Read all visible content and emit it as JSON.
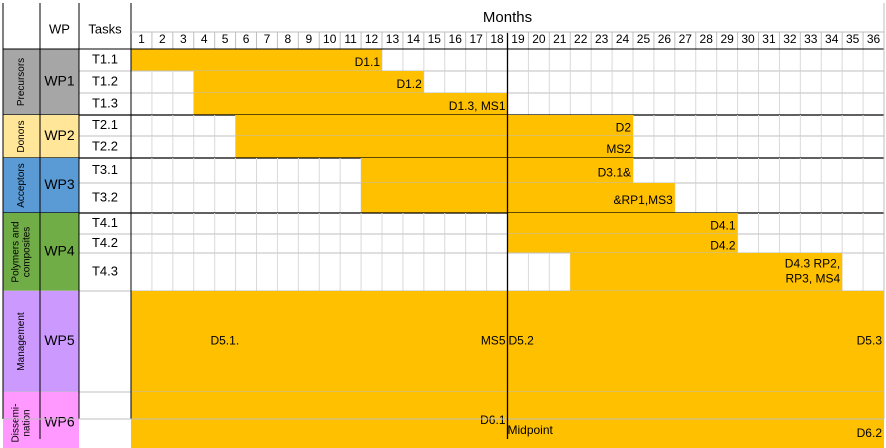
{
  "header": {
    "wp": "WP",
    "tasks": "Tasks",
    "months": "Months",
    "month_numbers": [
      "1",
      "2",
      "3",
      "4",
      "5",
      "6",
      "7",
      "8",
      "9",
      "10",
      "11",
      "12",
      "13",
      "14",
      "15",
      "16",
      "17",
      "18",
      "19",
      "20",
      "21",
      "22",
      "23",
      "24",
      "25",
      "26",
      "27",
      "28",
      "29",
      "30",
      "31",
      "32",
      "33",
      "34",
      "35",
      "36"
    ]
  },
  "footer": {
    "midpoint": "Midpoint"
  },
  "colors": {
    "bar": "#FFC000",
    "grid": "#BFBFBF",
    "line": "#000000"
  },
  "groups": [
    {
      "category_lines": [
        "Precursors"
      ],
      "category_color": "#A6A6A6",
      "wp": "WP1",
      "wp_color": "#A6A6A6",
      "tasks": [
        {
          "id": "T1.1",
          "start_month": 1,
          "end_month": 12,
          "labels": [
            "D1.1"
          ]
        },
        {
          "id": "T1.2",
          "start_month": 4,
          "end_month": 14,
          "labels": [
            "D1.2"
          ]
        },
        {
          "id": "T1.3",
          "start_month": 4,
          "end_month": 18,
          "labels": [
            "D1.3, MS1"
          ]
        }
      ]
    },
    {
      "category_lines": [
        "Donors"
      ],
      "category_color": "#FFE699",
      "wp": "WP2",
      "wp_color": "#FFE699",
      "tasks": [
        {
          "id": "T2.1",
          "start_month": 6,
          "end_month": 24,
          "labels": [
            "D2"
          ]
        },
        {
          "id": "T2.2",
          "start_month": 6,
          "end_month": 24,
          "labels": [
            "MS2"
          ]
        }
      ]
    },
    {
      "category_lines": [
        "Acceptors"
      ],
      "category_color": "#5B9BD5",
      "wp": "WP3",
      "wp_color": "#5B9BD5",
      "tasks": [
        {
          "id": "T3.1",
          "start_month": 12,
          "end_month": 24,
          "labels": [
            "D3.1&"
          ]
        },
        {
          "id": "T3.2",
          "start_month": 12,
          "end_month": 26,
          "labels": [
            "&RP1,MS3"
          ]
        }
      ]
    },
    {
      "category_lines": [
        "Polymers and",
        "composites"
      ],
      "category_color": "#70AD47",
      "wp": "WP4",
      "wp_color": "#70AD47",
      "tasks": [
        {
          "id": "T4.1",
          "start_month": 19,
          "end_month": 29,
          "labels": [
            "D4.1"
          ]
        },
        {
          "id": "T4.2",
          "start_month": 19,
          "end_month": 29,
          "labels": [
            "D4.2"
          ]
        },
        {
          "id": "T4.3",
          "start_month": 22,
          "end_month": 34,
          "labels": [
            "D4.3 RP2,",
            "RP3, MS4"
          ]
        }
      ]
    },
    {
      "category_lines": [
        "Management"
      ],
      "category_color": "#CC99FF",
      "wp": "WP5",
      "wp_color": "#CC99FF",
      "tasks": [
        {
          "id": "",
          "start_month": 1,
          "end_month": 36,
          "labels": [],
          "annotations": [
            {
              "text": "D5.1.",
              "month": 3
            },
            {
              "text": "MS5",
              "month": 18
            },
            {
              "text": "D5.2",
              "month": 19
            },
            {
              "text": "D5.3",
              "month": 36
            }
          ]
        }
      ]
    },
    {
      "category_lines": [
        "Dissemi-",
        "nation"
      ],
      "category_color": "#FF99FF",
      "wp": "WP6",
      "wp_color": "#FF99FF",
      "tasks": [
        {
          "id": "",
          "start_month": 1,
          "end_month": 36,
          "labels": [],
          "annotations": [
            {
              "text": "D6.1",
              "month": 18
            },
            {
              "text": "D6.2",
              "month": 36
            }
          ]
        }
      ]
    }
  ]
}
